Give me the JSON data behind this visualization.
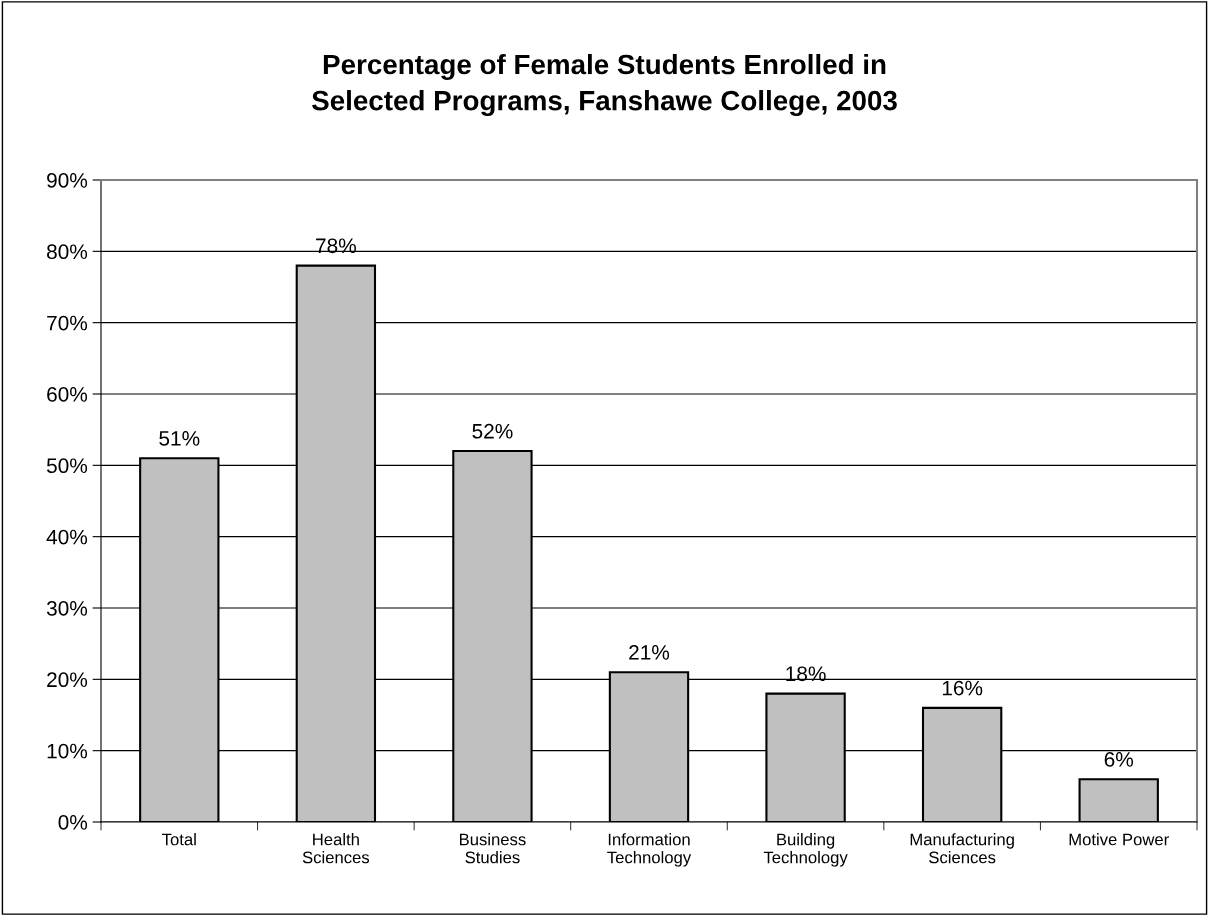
{
  "chart_data": {
    "type": "bar",
    "title": "Percentage of Female Students Enrolled in\nSelected Programs, Fanshawe College, 2003",
    "categories": [
      "Total",
      "Health\nSciences",
      "Business\nStudies",
      "Information\nTechnology",
      "Building\nTechnology",
      "Manufacturing\nSciences",
      "Motive Power"
    ],
    "values": [
      51,
      78,
      52,
      21,
      18,
      16,
      6
    ],
    "value_labels": [
      "51%",
      "78%",
      "52%",
      "21%",
      "18%",
      "16%",
      "6%"
    ],
    "color": "#c0c0c0",
    "ylim": [
      0,
      90
    ],
    "yticks": [
      {
        "value": 0,
        "label": "0%"
      },
      {
        "value": 10,
        "label": "10%"
      },
      {
        "value": 20,
        "label": "20%"
      },
      {
        "value": 30,
        "label": "30%"
      },
      {
        "value": 40,
        "label": "40%"
      },
      {
        "value": 50,
        "label": "50%"
      },
      {
        "value": 60,
        "label": "60%"
      },
      {
        "value": 70,
        "label": "70%"
      },
      {
        "value": 80,
        "label": "80%"
      },
      {
        "value": 90,
        "label": "90%"
      }
    ],
    "grid": "y"
  }
}
